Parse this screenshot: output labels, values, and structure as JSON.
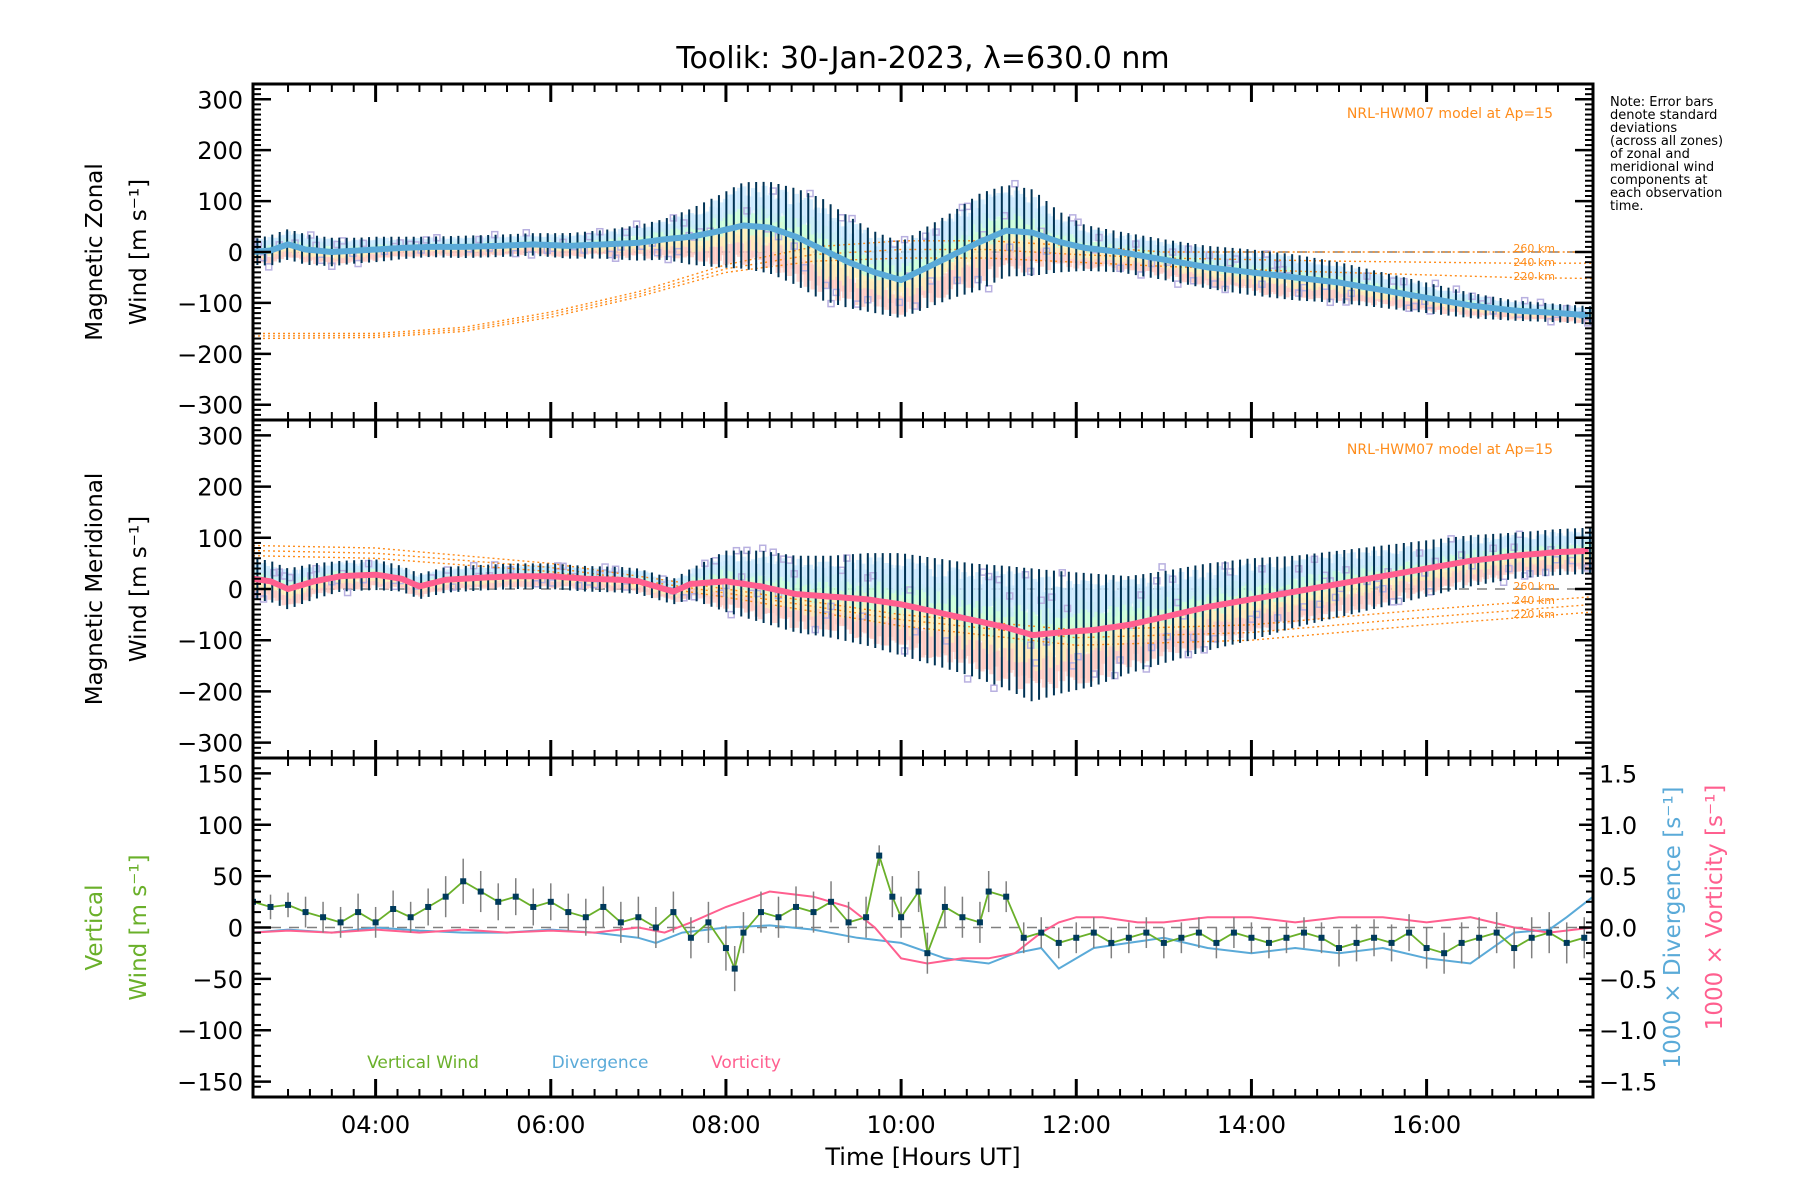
{
  "chart_data": {
    "type": "line",
    "title": "Toolik: 30-Jan-2023, λ=630.0 nm",
    "note": "Note: Error bars\ndenote standard\ndeviations\n(across all zones)\nof zonal and\nmeridional wind\ncomponents at\neach observation\ntime.",
    "xlabel": "Time [Hours UT]",
    "xlim": [
      2.6,
      17.9
    ],
    "xticks": [
      4,
      6,
      8,
      10,
      12,
      14,
      16
    ],
    "xtick_labels": [
      "04:00",
      "06:00",
      "08:00",
      "10:00",
      "12:00",
      "14:00",
      "16:00"
    ],
    "colors": {
      "zonal_mean": "#5aaad8",
      "meridional_mean": "#ff5f8f",
      "error_bar": "#003355",
      "zone_scatter": "#b8b0e0",
      "model": "#ff8c1a",
      "vertical_wind": "#6ab02a",
      "divergence": "#5aaad8",
      "vorticity": "#ff5f8f",
      "vertical_points": "#003a5c",
      "vertical_err": "#808080",
      "zero_line": "#808080"
    },
    "panels": [
      {
        "id": "zonal",
        "ylabel_line1": "Magnetic Zonal",
        "ylabel_line2": "Wind [m s⁻¹]",
        "ylim": [
          -330,
          330
        ],
        "yticks": [
          -300,
          -200,
          -100,
          0,
          100,
          200,
          300
        ],
        "ytick_labels": [
          "−300",
          "−200",
          "−100",
          "0",
          "100",
          "200",
          "300"
        ],
        "model_label": "NRL-HWM07 model at Ap=15",
        "model_altitudes": [
          "260 km",
          "240 km",
          "220 km"
        ],
        "model_series": [
          {
            "name": "260 km",
            "x": [
              2.6,
              4,
              5,
              6,
              7,
              8,
              9,
              10,
              11,
              12,
              13,
              14,
              15,
              16,
              17,
              17.9
            ],
            "y": [
              -160,
              -160,
              -148,
              -118,
              -78,
              -25,
              10,
              22,
              22,
              12,
              0,
              0,
              0,
              0,
              0,
              0
            ]
          },
          {
            "name": "240 km",
            "x": [
              2.6,
              4,
              5,
              6,
              7,
              8,
              9,
              10,
              11,
              12,
              13,
              14,
              15,
              16,
              17,
              17.9
            ],
            "y": [
              -165,
              -164,
              -152,
              -123,
              -83,
              -33,
              -5,
              5,
              5,
              -5,
              -12,
              -15,
              -18,
              -20,
              -22,
              -22
            ]
          },
          {
            "name": "220 km",
            "x": [
              2.6,
              4,
              5,
              6,
              7,
              8,
              9,
              10,
              11,
              12,
              13,
              14,
              15,
              16,
              17,
              17.9
            ],
            "y": [
              -170,
              -168,
              -156,
              -128,
              -88,
              -40,
              -18,
              -12,
              -12,
              -20,
              -28,
              -35,
              -40,
              -45,
              -50,
              -52
            ]
          }
        ],
        "mean_series": {
          "name": "Zonal mean",
          "x": [
            2.6,
            2.8,
            3.0,
            3.2,
            3.5,
            3.8,
            4.0,
            4.3,
            4.6,
            5.0,
            5.4,
            5.8,
            6.2,
            6.6,
            7.0,
            7.3,
            7.6,
            7.9,
            8.2,
            8.5,
            8.8,
            9.1,
            9.4,
            9.7,
            10.0,
            10.3,
            10.6,
            10.9,
            11.2,
            11.5,
            11.8,
            12.1,
            12.5,
            13.0,
            13.5,
            14.0,
            14.5,
            15.0,
            15.5,
            16.0,
            16.5,
            17.0,
            17.5,
            17.9
          ],
          "y": [
            0,
            3,
            15,
            5,
            0,
            3,
            5,
            8,
            10,
            10,
            12,
            15,
            12,
            15,
            18,
            25,
            30,
            40,
            52,
            48,
            30,
            5,
            -20,
            -40,
            -55,
            -30,
            -5,
            20,
            42,
            38,
            20,
            8,
            0,
            -15,
            -30,
            -40,
            -50,
            -60,
            -75,
            -90,
            -105,
            -115,
            -120,
            -125
          ],
          "err": [
            25,
            30,
            30,
            30,
            28,
            25,
            25,
            22,
            20,
            22,
            22,
            22,
            25,
            28,
            35,
            40,
            55,
            70,
            85,
            90,
            95,
            100,
            90,
            80,
            75,
            80,
            85,
            95,
            90,
            85,
            60,
            45,
            40,
            40,
            42,
            45,
            45,
            40,
            35,
            30,
            25,
            20,
            18,
            18
          ]
        }
      },
      {
        "id": "meridional",
        "ylabel_line1": "Magnetic Meridional",
        "ylabel_line2": "Wind [m s⁻¹]",
        "ylim": [
          -330,
          330
        ],
        "yticks": [
          -300,
          -200,
          -100,
          0,
          100,
          200,
          300
        ],
        "ytick_labels": [
          "−300",
          "−200",
          "−100",
          "0",
          "100",
          "200",
          "300"
        ],
        "model_label": "NRL-HWM07 model at Ap=15",
        "model_altitudes": [
          "260 km",
          "240 km",
          "220 km"
        ],
        "model_series": [
          {
            "name": "260 km",
            "x": [
              2.6,
              4,
              6,
              8,
              10,
              12,
              14,
              16,
              17.9
            ],
            "y": [
              85,
              80,
              50,
              0,
              -50,
              -80,
              -70,
              -40,
              -15
            ]
          },
          {
            "name": "240 km",
            "x": [
              2.6,
              4,
              6,
              8,
              10,
              12,
              14,
              16,
              17.9
            ],
            "y": [
              75,
              70,
              42,
              -8,
              -60,
              -95,
              -85,
              -55,
              -30
            ]
          },
          {
            "name": "220 km",
            "x": [
              2.6,
              4,
              6,
              8,
              10,
              12,
              14,
              16,
              17.9
            ],
            "y": [
              65,
              60,
              34,
              -16,
              -72,
              -110,
              -100,
              -70,
              -45
            ]
          }
        ],
        "mean_series": {
          "name": "Meridional mean",
          "x": [
            2.6,
            2.8,
            3.0,
            3.3,
            3.6,
            4.0,
            4.3,
            4.5,
            4.8,
            5.2,
            5.6,
            6.0,
            6.4,
            6.8,
            7.0,
            7.2,
            7.4,
            7.6,
            8.0,
            8.4,
            8.8,
            9.2,
            9.6,
            10.0,
            10.4,
            10.8,
            11.2,
            11.5,
            11.8,
            12.2,
            12.6,
            13.0,
            13.5,
            14.0,
            14.5,
            15.0,
            15.5,
            16.0,
            16.5,
            17.0,
            17.5,
            17.9
          ],
          "y": [
            20,
            15,
            0,
            15,
            25,
            28,
            20,
            5,
            18,
            22,
            25,
            25,
            20,
            18,
            15,
            5,
            -5,
            10,
            15,
            5,
            -10,
            -15,
            -20,
            -30,
            -45,
            -60,
            -75,
            -90,
            -85,
            -80,
            -70,
            -55,
            -35,
            -20,
            -5,
            10,
            25,
            40,
            55,
            65,
            72,
            75
          ],
          "err": [
            40,
            40,
            40,
            35,
            30,
            30,
            25,
            25,
            25,
            25,
            25,
            25,
            25,
            25,
            25,
            25,
            25,
            30,
            60,
            70,
            75,
            80,
            90,
            100,
            105,
            110,
            120,
            130,
            120,
            110,
            95,
            90,
            85,
            80,
            70,
            65,
            60,
            55,
            50,
            45,
            45,
            45
          ]
        }
      },
      {
        "id": "vertical",
        "ylabel_line1": "Vertical",
        "ylabel_line2": "Wind [m s⁻¹]",
        "ylim": [
          -165,
          165
        ],
        "yticks": [
          -150,
          -100,
          -50,
          0,
          50,
          100,
          150
        ],
        "ytick_labels": [
          "−150",
          "−100",
          "−50",
          "0",
          "50",
          "100",
          "150"
        ],
        "y2lim": [
          -1.65,
          1.65
        ],
        "y2ticks": [
          -1.5,
          -1.0,
          -0.5,
          0.0,
          0.5,
          1.0,
          1.5
        ],
        "y2tick_labels": [
          "−1.5",
          "−1.0",
          "−0.5",
          "0.0",
          "0.5",
          "1.0",
          "1.5"
        ],
        "y2label_divergence": "1000 × Divergence [s⁻¹]",
        "y2label_vorticity": "1000 × Vorticity [s⁻¹]",
        "legend": [
          "Vertical Wind",
          "Divergence",
          "Vorticity"
        ],
        "legend_placement": "bottom-left",
        "vertical_wind": {
          "x": [
            2.6,
            2.8,
            3.0,
            3.2,
            3.4,
            3.6,
            3.8,
            4.0,
            4.2,
            4.4,
            4.6,
            4.8,
            5.0,
            5.2,
            5.4,
            5.6,
            5.8,
            6.0,
            6.2,
            6.4,
            6.6,
            6.8,
            7.0,
            7.2,
            7.4,
            7.6,
            7.8,
            8.0,
            8.1,
            8.2,
            8.4,
            8.6,
            8.8,
            9.0,
            9.2,
            9.4,
            9.6,
            9.75,
            9.9,
            10.0,
            10.2,
            10.3,
            10.5,
            10.7,
            10.9,
            11.0,
            11.2,
            11.4,
            11.6,
            11.8,
            12.0,
            12.2,
            12.4,
            12.6,
            12.8,
            13.0,
            13.2,
            13.4,
            13.6,
            13.8,
            14.0,
            14.2,
            14.4,
            14.6,
            14.8,
            15.0,
            15.2,
            15.4,
            15.6,
            15.8,
            16.0,
            16.2,
            16.4,
            16.6,
            16.8,
            17.0,
            17.2,
            17.4,
            17.6,
            17.8
          ],
          "y": [
            25,
            20,
            22,
            15,
            10,
            5,
            15,
            5,
            18,
            10,
            20,
            30,
            45,
            35,
            25,
            30,
            20,
            25,
            15,
            10,
            20,
            5,
            10,
            0,
            15,
            -10,
            5,
            -20,
            -40,
            -5,
            15,
            10,
            20,
            15,
            25,
            5,
            10,
            70,
            30,
            10,
            35,
            -25,
            20,
            10,
            5,
            35,
            30,
            -10,
            -5,
            -15,
            -10,
            -5,
            -15,
            -10,
            -5,
            -15,
            -10,
            -5,
            -15,
            -5,
            -10,
            -15,
            -10,
            -5,
            -10,
            -20,
            -15,
            -10,
            -15,
            -5,
            -20,
            -25,
            -15,
            -10,
            -5,
            -20,
            -10,
            -5,
            -15,
            -10
          ],
          "err": [
            10,
            12,
            12,
            15,
            15,
            15,
            18,
            15,
            18,
            15,
            18,
            20,
            22,
            20,
            18,
            18,
            18,
            18,
            18,
            18,
            20,
            20,
            20,
            20,
            20,
            20,
            20,
            22,
            22,
            20,
            20,
            20,
            20,
            20,
            20,
            20,
            20,
            10,
            20,
            20,
            20,
            20,
            20,
            20,
            20,
            20,
            15,
            15,
            15,
            15,
            15,
            15,
            15,
            15,
            15,
            15,
            15,
            15,
            15,
            15,
            15,
            15,
            15,
            15,
            15,
            18,
            18,
            18,
            18,
            18,
            20,
            20,
            20,
            20,
            20,
            20,
            20,
            20,
            20,
            20
          ]
        },
        "divergence": {
          "x": [
            2.6,
            3.0,
            3.5,
            4.0,
            4.5,
            5.0,
            5.5,
            6.0,
            6.5,
            7.0,
            7.2,
            7.5,
            8.0,
            8.5,
            9.0,
            9.5,
            10.0,
            10.5,
            11.0,
            11.3,
            11.6,
            11.8,
            12.2,
            12.6,
            13.0,
            13.5,
            14.0,
            14.5,
            15.0,
            15.5,
            16.0,
            16.5,
            17.0,
            17.4,
            17.6,
            17.9
          ],
          "y": [
            -0.05,
            -0.02,
            -0.05,
            0.0,
            -0.03,
            -0.05,
            -0.05,
            -0.02,
            -0.05,
            -0.1,
            -0.15,
            -0.05,
            0.0,
            0.02,
            -0.02,
            -0.1,
            -0.15,
            -0.3,
            -0.35,
            -0.25,
            -0.2,
            -0.4,
            -0.2,
            -0.15,
            -0.1,
            -0.2,
            -0.25,
            -0.2,
            -0.25,
            -0.2,
            -0.3,
            -0.35,
            -0.05,
            -0.02,
            0.1,
            0.3
          ]
        },
        "vorticity": {
          "x": [
            2.6,
            3.0,
            3.5,
            4.0,
            4.5,
            5.0,
            5.5,
            6.0,
            6.5,
            7.0,
            7.3,
            7.6,
            8.0,
            8.5,
            9.0,
            9.4,
            9.7,
            10.0,
            10.3,
            10.7,
            11.0,
            11.3,
            11.6,
            11.8,
            12.0,
            12.3,
            12.7,
            13.0,
            13.5,
            14.0,
            14.5,
            15.0,
            15.5,
            16.0,
            16.5,
            17.0,
            17.4,
            17.9
          ],
          "y": [
            -0.05,
            -0.03,
            -0.05,
            -0.02,
            -0.05,
            -0.02,
            -0.05,
            -0.03,
            -0.05,
            0.0,
            -0.05,
            0.05,
            0.2,
            0.35,
            0.3,
            0.2,
            0.0,
            -0.3,
            -0.35,
            -0.3,
            -0.3,
            -0.25,
            -0.05,
            0.05,
            0.1,
            0.1,
            0.05,
            0.05,
            0.1,
            0.1,
            0.05,
            0.1,
            0.1,
            0.05,
            0.1,
            0.0,
            -0.05,
            0.0
          ]
        }
      }
    ]
  }
}
